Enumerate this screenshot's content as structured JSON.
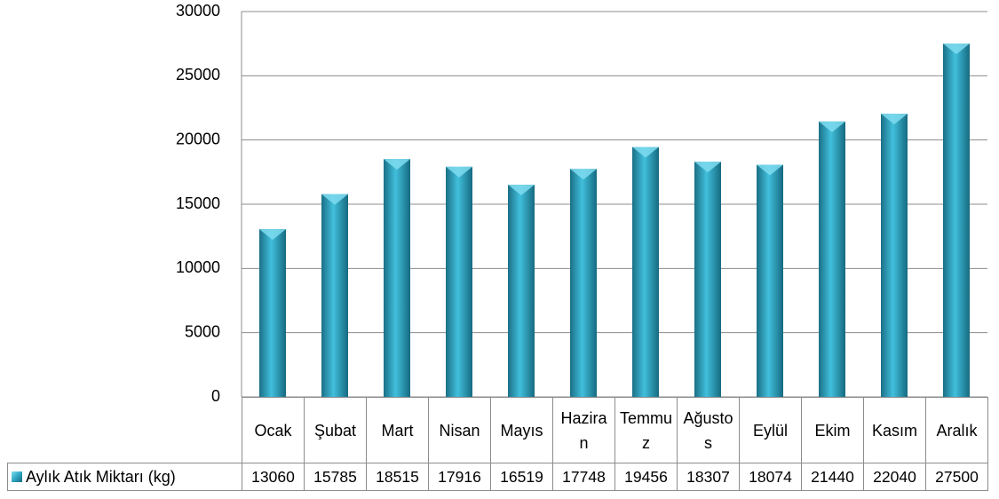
{
  "chart_data": {
    "type": "bar",
    "categories": [
      "Ocak",
      "Şubat",
      "Mart",
      "Nisan",
      "Mayıs",
      "Haziran",
      "Temmuz",
      "Ağustos",
      "Eylül",
      "Ekim",
      "Kasım",
      "Aralık"
    ],
    "series": [
      {
        "name": "Aylık Atık Miktarı (kg)",
        "color": "#2ea7c4",
        "values": [
          13060,
          15785,
          18515,
          17916,
          16519,
          17748,
          19456,
          18307,
          18074,
          21440,
          22040,
          27500
        ]
      }
    ],
    "ylim": [
      0,
      30000
    ],
    "yticks": [
      0,
      5000,
      10000,
      15000,
      20000,
      25000,
      30000
    ],
    "grid": true,
    "legend": "table"
  }
}
